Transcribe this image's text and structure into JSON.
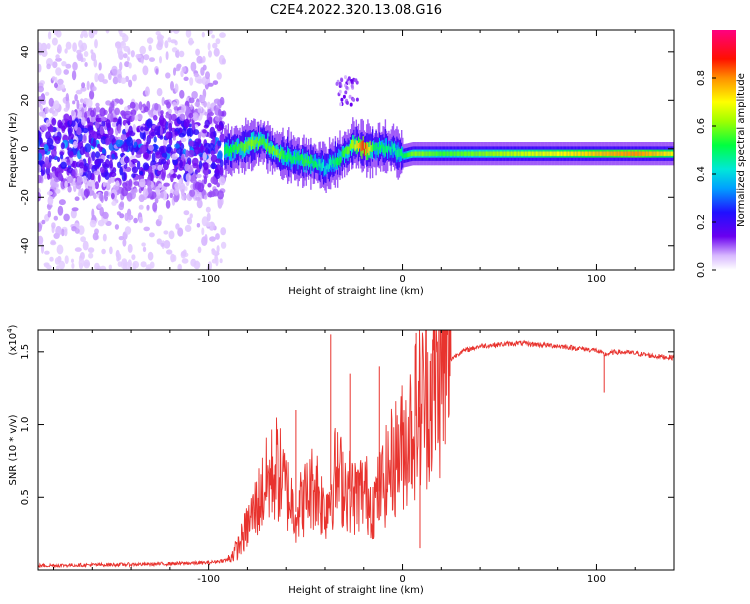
{
  "title": "C2E4.2022.320.13.08.G16",
  "chart_data": [
    {
      "type": "heatmap",
      "xlabel": "Height of straight line (km)",
      "ylabel": "Frequency (Hz)",
      "xlim": [
        -188,
        140
      ],
      "ylim": [
        -50,
        49
      ],
      "x_ticks": [
        -100,
        0,
        100
      ],
      "y_ticks": [
        -40,
        -20,
        0,
        20,
        40
      ],
      "colorbar": {
        "label": "Normalized spectral amplitude",
        "range": [
          0,
          1
        ],
        "ticks": [
          0.0,
          0.2,
          0.4,
          0.6,
          0.8
        ]
      },
      "ridge": {
        "x": [
          -92,
          -85,
          -78,
          -72,
          -65,
          -60,
          -55,
          -50,
          -45,
          -40,
          -35,
          -30,
          -25,
          -20,
          -15,
          -10,
          -5,
          0,
          5,
          10,
          20,
          40,
          60,
          80,
          100,
          120,
          140
        ],
        "frequency": [
          -1,
          0,
          2,
          3,
          -2,
          -3,
          -4,
          -5,
          -6,
          -8,
          -5,
          -2,
          2,
          0,
          0,
          0,
          0,
          -3,
          -2,
          -2,
          -2,
          -2,
          -2,
          -2,
          -2,
          -2,
          -2
        ],
        "amplitude": [
          0.5,
          0.55,
          0.6,
          0.55,
          0.6,
          0.5,
          0.5,
          0.55,
          0.5,
          0.4,
          0.5,
          0.55,
          0.65,
          0.9,
          0.5,
          0.5,
          0.45,
          0.5,
          0.6,
          0.6,
          0.55,
          0.6,
          0.65,
          0.7,
          0.75,
          0.8,
          0.7
        ]
      },
      "noise_region": {
        "x_from": -188,
        "x_to": -92,
        "frequency_range": [
          -50,
          49
        ]
      }
    },
    {
      "type": "line",
      "xlabel": "Height of straight line (km)",
      "ylabel": "SNR (10 * v/v)",
      "y_multiplier": "(x10",
      "y_exponent": "4",
      "xlim": [
        -188,
        140
      ],
      "ylim": [
        0,
        16500
      ],
      "x_ticks": [
        -100,
        0,
        100
      ],
      "y_ticks": [
        5000,
        10000,
        15000
      ],
      "y_tick_labels": [
        "0.5",
        "1.0",
        "1.5"
      ],
      "color": "#e8332e",
      "series": [
        {
          "x": [
            -188,
            -160,
            -130,
            -100,
            -90,
            -85,
            -80,
            -75,
            -70,
            -65,
            -60,
            -55,
            -50,
            -45,
            -40,
            -35,
            -30,
            -25,
            -20,
            -15,
            -10,
            -5,
            0,
            5,
            10,
            15,
            20,
            25,
            30,
            40,
            60,
            80,
            100,
            104,
            110,
            120,
            130,
            140
          ],
          "y": [
            300,
            350,
            400,
            500,
            700,
            1500,
            3000,
            4500,
            6000,
            7000,
            5500,
            4000,
            5000,
            6000,
            4000,
            6500,
            6000,
            5000,
            5500,
            4500,
            6000,
            7500,
            8500,
            10000,
            11500,
            12500,
            13500,
            14500,
            15000,
            15400,
            15600,
            15400,
            15100,
            14800,
            15000,
            14900,
            14700,
            14600
          ]
        }
      ],
      "spikes": [
        {
          "x": -55,
          "y": 11000
        },
        {
          "x": -37,
          "y": 16200
        },
        {
          "x": -27,
          "y": 13500
        },
        {
          "x": -12,
          "y": 14000
        },
        {
          "x": 7,
          "y": 16300
        },
        {
          "x": 9,
          "y": 1500
        },
        {
          "x": 104,
          "y": 12200
        }
      ]
    }
  ]
}
